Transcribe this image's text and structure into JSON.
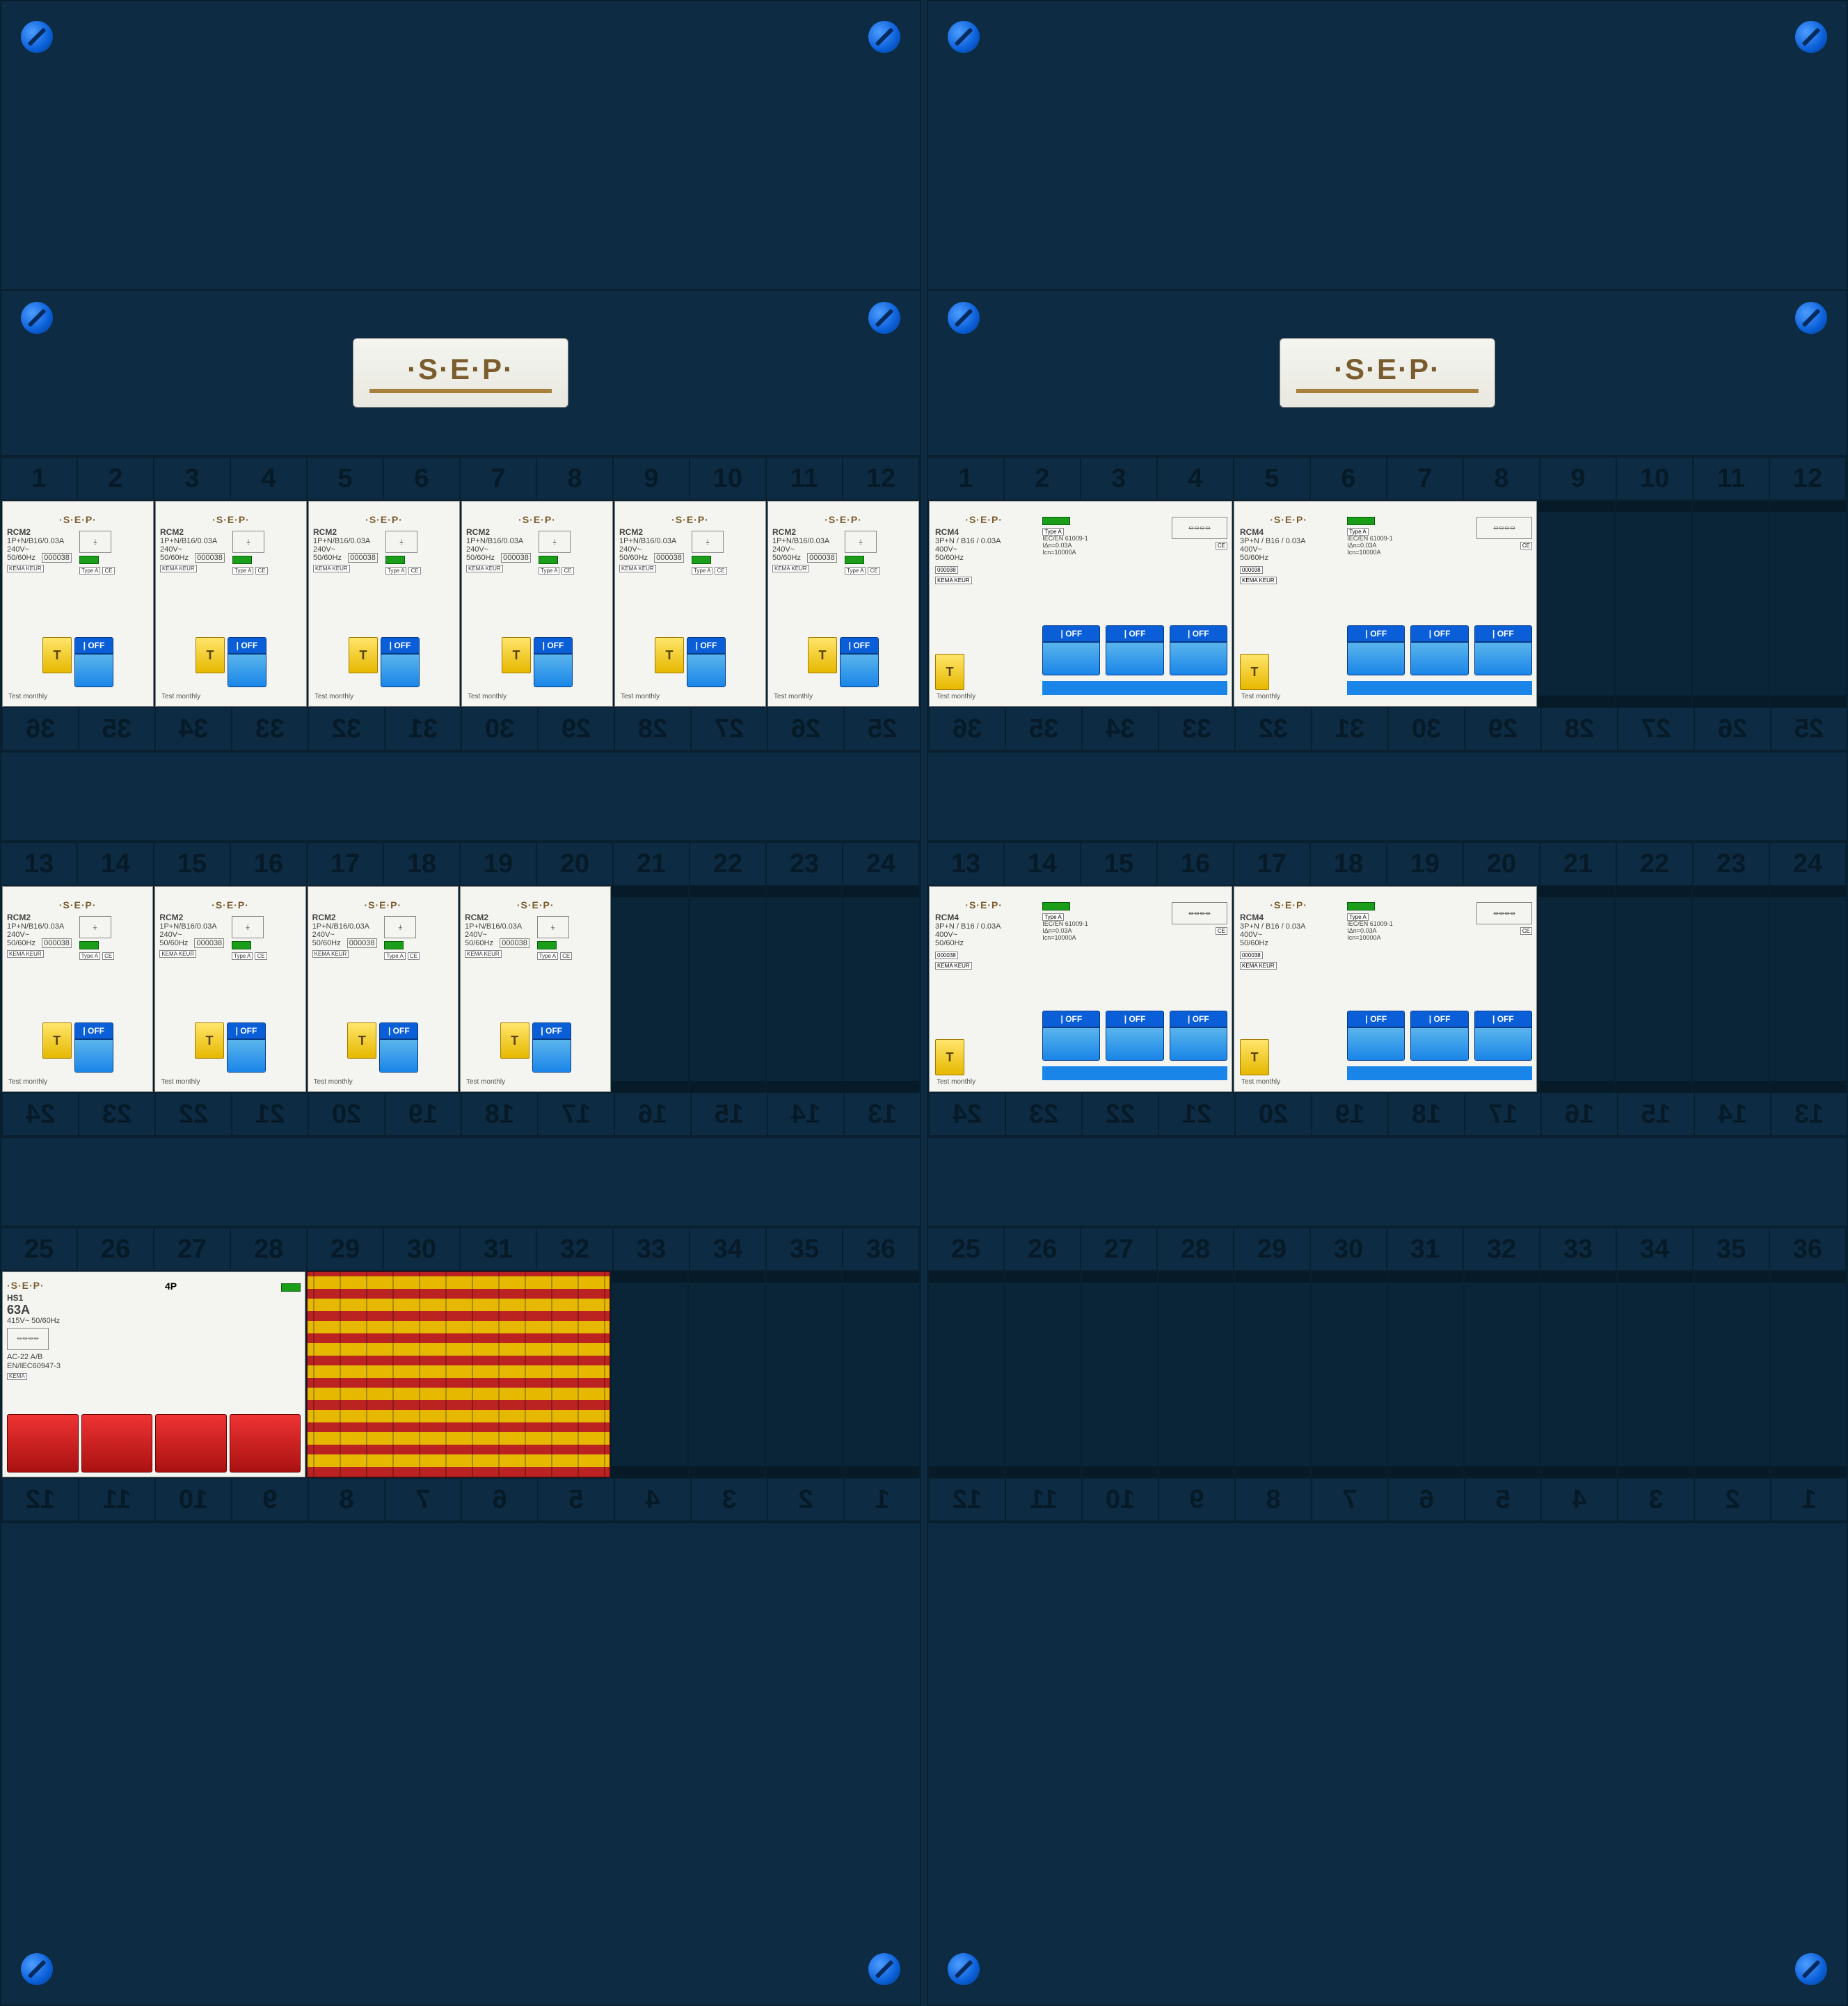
{
  "brand": "·S·E·P·",
  "screw_color": "#0a5fd8",
  "panel_bg": "#0d2b42",
  "numbers_1_12": [
    "1",
    "2",
    "3",
    "4",
    "5",
    "6",
    "7",
    "8",
    "9",
    "10",
    "11",
    "12"
  ],
  "numbers_13_24": [
    "13",
    "14",
    "15",
    "16",
    "17",
    "18",
    "19",
    "20",
    "21",
    "22",
    "23",
    "24"
  ],
  "numbers_25_36": [
    "25",
    "26",
    "27",
    "28",
    "29",
    "30",
    "31",
    "32",
    "33",
    "34",
    "35",
    "36"
  ],
  "numbers_25_36_rev": [
    "36",
    "35",
    "34",
    "33",
    "32",
    "31",
    "30",
    "29",
    "28",
    "27",
    "26",
    "25"
  ],
  "numbers_13_24_rev": [
    "24",
    "23",
    "22",
    "21",
    "20",
    "19",
    "18",
    "17",
    "16",
    "15",
    "14",
    "13"
  ],
  "numbers_1_12_rev": [
    "12",
    "11",
    "10",
    "9",
    "8",
    "7",
    "6",
    "5",
    "4",
    "3",
    "2",
    "1"
  ],
  "rcm2": {
    "brand": "·S·E·P·",
    "model": "RCM2",
    "rating": "1P+N/B16/0.03A",
    "voltage": "240V~",
    "freq": "50/60Hz",
    "ce": "CE",
    "kema": "KEMA KEUR",
    "box_code": "000038",
    "type": "Type A",
    "test_label": "Test  monthly",
    "test_btn": "T",
    "toggle": "| OFF",
    "led_color": "#1a9e1a",
    "toggle_color": "#1a85e8",
    "test_btn_color": "#e6b800"
  },
  "rcm4": {
    "brand": "·S·E·P·",
    "model": "RCM4",
    "rating": "3P+N / B16 / 0.03A",
    "voltage": "400V~",
    "freq": "50/60Hz",
    "type": "Type A",
    "std": "IEC/EN 61009-1",
    "idn": "IΔn=0.03A",
    "icn": "Icn=10000A",
    "ce": "CE",
    "kema": "KEMA KEUR",
    "test_label": "Test  monthly",
    "test_btn": "T",
    "toggle": "| OFF"
  },
  "hs1": {
    "brand": "·S·E·P·",
    "model": "HS1",
    "amps": "63A",
    "voltage": "415V~  50/60Hz",
    "poles": "4P",
    "ac": "AC-22 A/B",
    "std": "EN/IEC60947-3",
    "kema": "KEMA",
    "switch_color": "#c41818"
  },
  "layout": {
    "left_panel": {
      "row1_rcm2_count": 6,
      "row2_rcm2_count": 4,
      "row3": "hs1+busbars"
    },
    "right_panel": {
      "row1_rcm4_count": 2,
      "row2_rcm4_count": 2
    }
  },
  "colors": {
    "device_bg": "#f4f4f0",
    "text": "#333333",
    "panel_line": "#08202f",
    "busbar_red": "#b22",
    "busbar_yellow": "#e6b800"
  }
}
